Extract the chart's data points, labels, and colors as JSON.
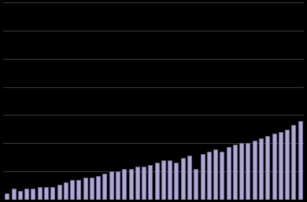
{
  "values": [
    3,
    5,
    4,
    5,
    5,
    6,
    6,
    6,
    7,
    8,
    9,
    9,
    10,
    10,
    11,
    12,
    13,
    13,
    14,
    14,
    15,
    15,
    16,
    17,
    18,
    18,
    17,
    19,
    20,
    14,
    21,
    22,
    23,
    22,
    24,
    25,
    26,
    26,
    27,
    28,
    29,
    30,
    31,
    32,
    34,
    36
  ],
  "bar_color": "#b0a8d4",
  "bar_edge_color": "#8878b8",
  "background_color": "#000000",
  "grid_color": "#555555",
  "ylim": [
    0,
    90
  ],
  "n_gridlines": 7,
  "bar_width": 0.6
}
